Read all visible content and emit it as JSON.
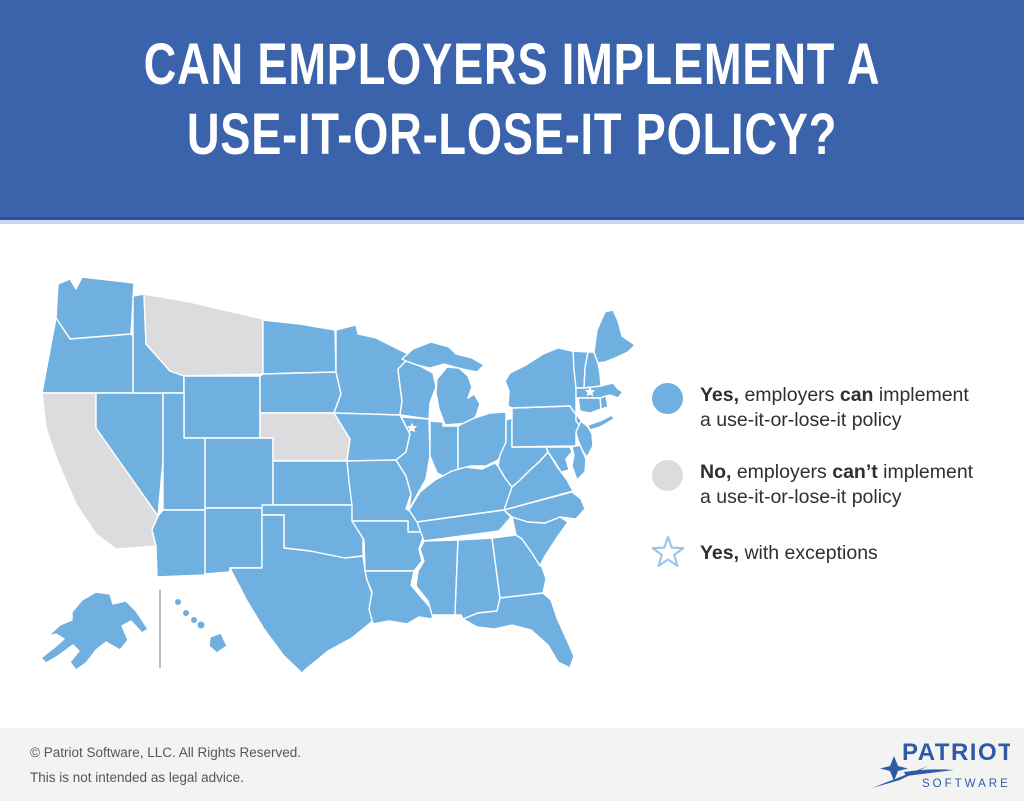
{
  "header": {
    "title_line1": "CAN EMPLOYERS IMPLEMENT A",
    "title_line2": "USE-IT-OR-LOSE-IT POLICY?",
    "bg_color": "#3A63AC"
  },
  "legend": {
    "items": [
      {
        "icon": "blue-circle",
        "line1_segments": [
          {
            "t": "Yes,",
            "b": true
          },
          {
            "t": " employers ",
            "b": false
          },
          {
            "t": "can",
            "b": true
          },
          {
            "t": " implement",
            "b": false
          }
        ],
        "line2": "a use-it-or-lose-it policy"
      },
      {
        "icon": "gray-circle",
        "line1_segments": [
          {
            "t": "No,",
            "b": true
          },
          {
            "t": " employers ",
            "b": false
          },
          {
            "t": "can’t",
            "b": true
          },
          {
            "t": " implement",
            "b": false
          }
        ],
        "line2": "a use-it-or-lose-it policy"
      },
      {
        "icon": "star-outline",
        "line1_segments": [
          {
            "t": "Yes,",
            "b": true
          },
          {
            "t": " with exceptions",
            "b": false
          }
        ],
        "line2": ""
      }
    ]
  },
  "map": {
    "yes_color": "#6FB0E0",
    "no_color": "#DCDCDE",
    "no_states": [
      "California",
      "Montana",
      "Nebraska"
    ],
    "exception_states": [
      "Illinois",
      "Massachusetts"
    ],
    "star_marker_color": "#FFFFFF",
    "legend_star_stroke": "#9DC6E9"
  },
  "footer": {
    "copyright": "© Patriot Software, LLC. All Rights Reserved.",
    "disclaimer": "This is not intended as legal advice.",
    "logo_primary": "PATRIOT",
    "logo_secondary": "SOFTWARE",
    "logo_color": "#2D5BA7"
  }
}
